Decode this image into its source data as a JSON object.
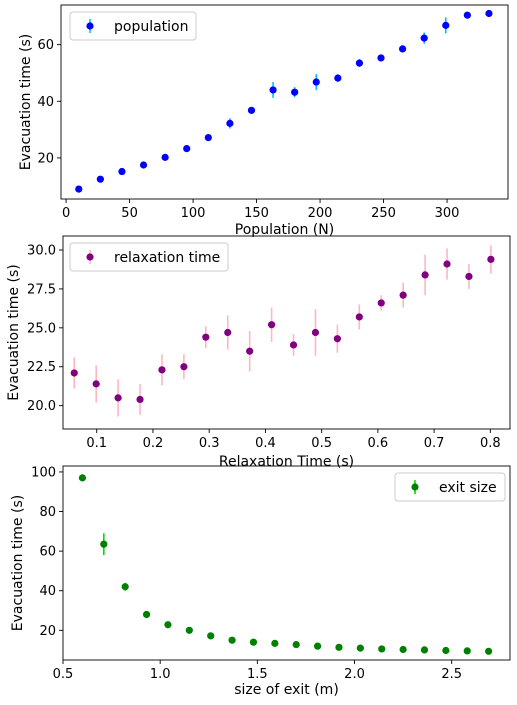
{
  "chart_data": [
    {
      "type": "scatter",
      "xlabel": "Population (N)",
      "ylabel": "Evacuation time (s)",
      "xlim": [
        -4,
        348
      ],
      "ylim": [
        5.5,
        74
      ],
      "xticks": [
        0,
        50,
        100,
        150,
        200,
        250,
        300
      ],
      "yticks": [
        20,
        40,
        60
      ],
      "legend_position": "top-left",
      "grid": false,
      "series": [
        {
          "name": "population",
          "marker_color": "#0000ff",
          "error_color": "#00bfff",
          "x": [
            10,
            27,
            44,
            61,
            78,
            95,
            112,
            129,
            146,
            163,
            180,
            197,
            214,
            231,
            248,
            265,
            282,
            299,
            316,
            333
          ],
          "y": [
            9,
            12.5,
            15.2,
            17.5,
            20.2,
            23.3,
            27.2,
            32.2,
            36.8,
            44.0,
            43.2,
            46.8,
            48.2,
            53.5,
            55.3,
            58.5,
            62.3,
            66.8,
            70.4,
            71.0
          ],
          "err": [
            0.5,
            0.5,
            0.5,
            0.5,
            0.6,
            0.6,
            0.8,
            1.8,
            1.2,
            2.8,
            1.8,
            2.8,
            1.4,
            1.4,
            1.2,
            0.8,
            2.0,
            2.8,
            1.2,
            0.8
          ]
        }
      ]
    },
    {
      "type": "scatter",
      "xlabel": "Relaxation Time (s)",
      "ylabel": "Evacuation time (s)",
      "xlim": [
        0.04,
        0.835
      ],
      "ylim": [
        18.5,
        30.9
      ],
      "xticks": [
        0.1,
        0.2,
        0.3,
        0.4,
        0.5,
        0.6,
        0.7,
        0.8
      ],
      "yticks": [
        20.0,
        22.5,
        25.0,
        27.5,
        30.0
      ],
      "legend_position": "top-left",
      "grid": false,
      "series": [
        {
          "name": "relaxation time",
          "marker_color": "#800080",
          "error_color": "#ffb6c1",
          "x": [
            0.06,
            0.099,
            0.138,
            0.177,
            0.216,
            0.255,
            0.294,
            0.333,
            0.372,
            0.411,
            0.45,
            0.489,
            0.528,
            0.567,
            0.606,
            0.645,
            0.684,
            0.723,
            0.762,
            0.801
          ],
          "y": [
            22.1,
            21.4,
            20.5,
            20.4,
            22.3,
            22.5,
            24.4,
            24.7,
            23.5,
            25.2,
            23.9,
            24.7,
            24.3,
            25.7,
            26.6,
            27.1,
            28.4,
            29.1,
            28.3,
            29.4
          ],
          "err": [
            1.0,
            1.2,
            1.2,
            1.0,
            1.0,
            0.8,
            0.7,
            1.1,
            1.3,
            1.1,
            0.7,
            1.5,
            0.9,
            0.8,
            0.5,
            0.8,
            1.3,
            1.0,
            0.8,
            0.9
          ]
        }
      ]
    },
    {
      "type": "scatter",
      "xlabel": "size of exit (m)",
      "ylabel": "Evacuation time (s)",
      "xlim": [
        0.5,
        2.8
      ],
      "ylim": [
        5,
        103
      ],
      "xticks": [
        0.5,
        1.0,
        1.5,
        2.0,
        2.5
      ],
      "yticks": [
        20,
        40,
        60,
        80,
        100
      ],
      "legend_position": "top-right",
      "grid": false,
      "series": [
        {
          "name": "exit size",
          "marker_color": "#008000",
          "error_color": "#00e000",
          "x": [
            0.6,
            0.71,
            0.82,
            0.93,
            1.04,
            1.15,
            1.26,
            1.37,
            1.48,
            1.59,
            1.7,
            1.81,
            1.92,
            2.03,
            2.14,
            2.25,
            2.36,
            2.47,
            2.58,
            2.69
          ],
          "y": [
            97,
            63.5,
            42,
            28,
            22.8,
            20,
            17.2,
            15,
            14,
            13.4,
            12.8,
            12,
            11.4,
            11,
            10.6,
            10.3,
            10.1,
            9.8,
            9.6,
            9.4
          ],
          "err": [
            1.5,
            5.5,
            2.0,
            1.0,
            0.6,
            0.5,
            0.5,
            0.4,
            0.4,
            0.4,
            0.3,
            0.3,
            0.3,
            0.3,
            0.3,
            0.3,
            0.3,
            0.3,
            0.3,
            0.3
          ]
        }
      ]
    }
  ]
}
